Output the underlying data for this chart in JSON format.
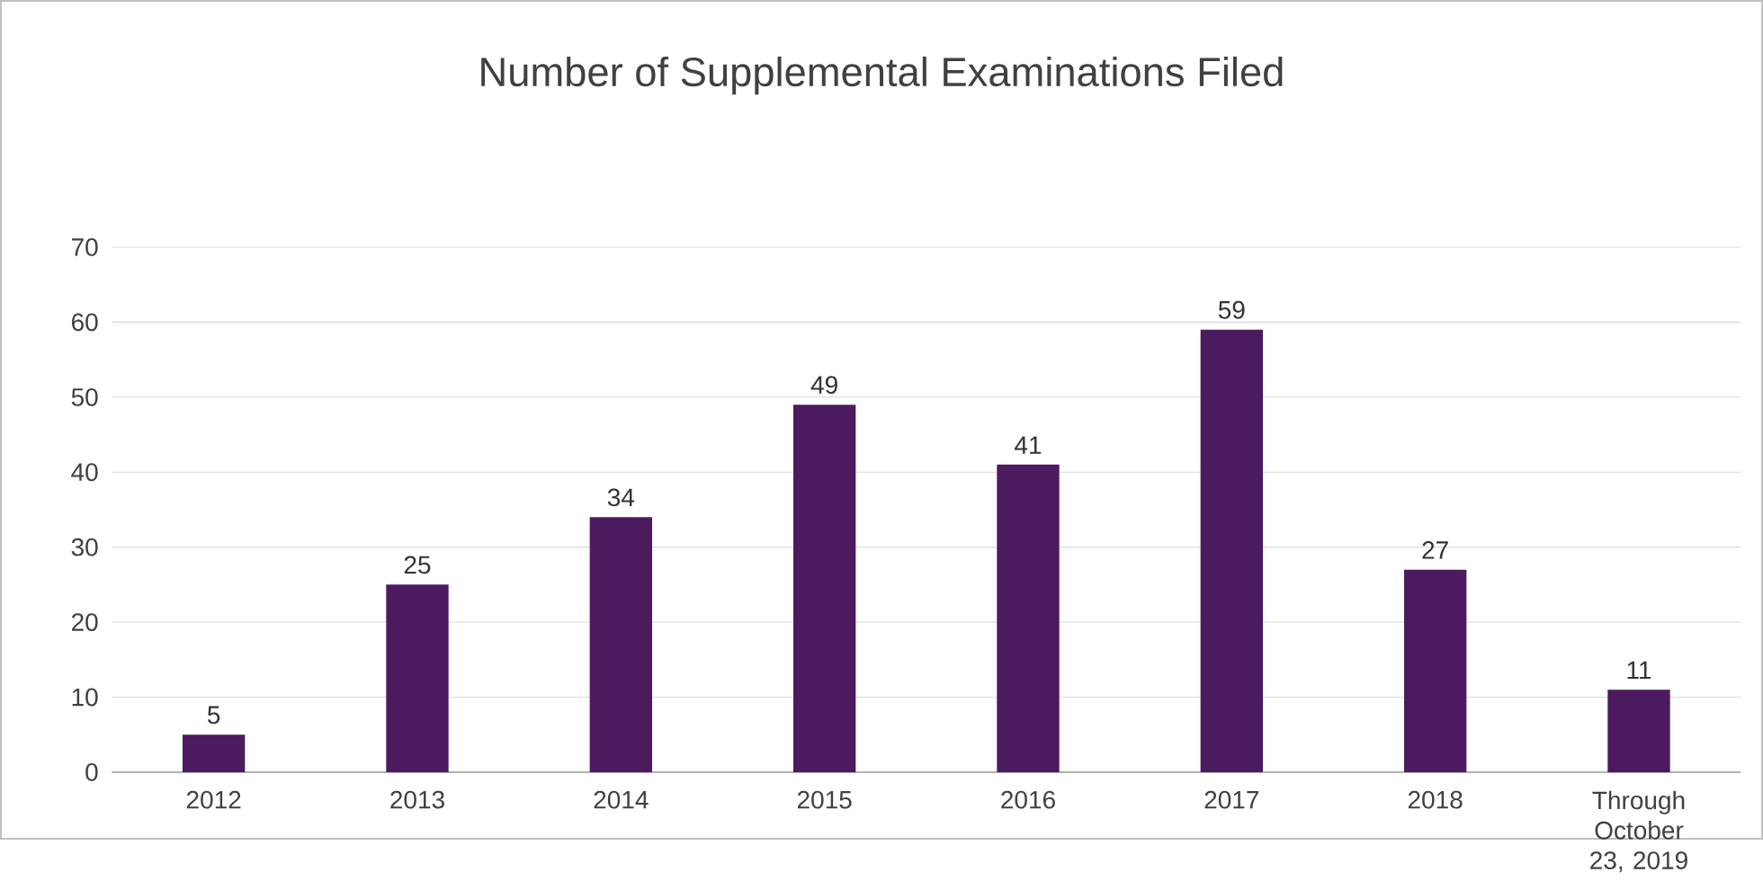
{
  "chart_data": {
    "type": "bar",
    "title": "Number of Supplemental Examinations Filed",
    "categories": [
      "2012",
      "2013",
      "2014",
      "2015",
      "2016",
      "2017",
      "2018",
      "Through October 23, 2019"
    ],
    "values": [
      5,
      25,
      34,
      49,
      41,
      59,
      27,
      11
    ],
    "color": "#4b1a5f",
    "ylim": [
      0,
      70
    ],
    "yticks": [
      0,
      10,
      20,
      30,
      40,
      50,
      60,
      70
    ],
    "grid": "y",
    "data_labels": true
  }
}
